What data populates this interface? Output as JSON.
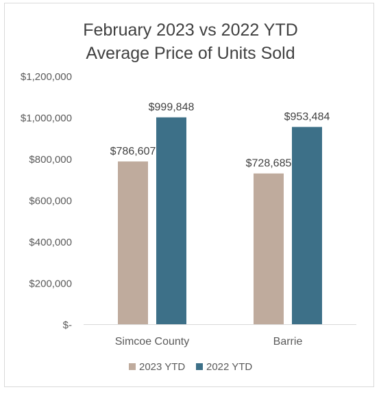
{
  "chart_data": {
    "type": "bar",
    "title": "February 2023 vs 2022 YTD",
    "subtitle": "Average Price of Units Sold",
    "categories": [
      "Simcoe County",
      "Barrie"
    ],
    "series": [
      {
        "name": "2023 YTD",
        "color": "#bfab9d",
        "values": [
          786607,
          728685
        ],
        "labels": [
          "$786,607",
          "$728,685"
        ]
      },
      {
        "name": "2022 YTD",
        "color": "#3d7088",
        "values": [
          999848,
          953484
        ],
        "labels": [
          "$999,848",
          "$953,484"
        ]
      }
    ],
    "ylim": [
      0,
      1200000
    ],
    "yticks": [
      {
        "value": 0,
        "label": "$-"
      },
      {
        "value": 200000,
        "label": "$200,000"
      },
      {
        "value": 400000,
        "label": "$400,000"
      },
      {
        "value": 600000,
        "label": "$600,000"
      },
      {
        "value": 800000,
        "label": "$800,000"
      },
      {
        "value": 1000000,
        "label": "$1,000,000"
      },
      {
        "value": 1200000,
        "label": "$1,200,000"
      }
    ],
    "grid": false,
    "legend": "bottom"
  }
}
